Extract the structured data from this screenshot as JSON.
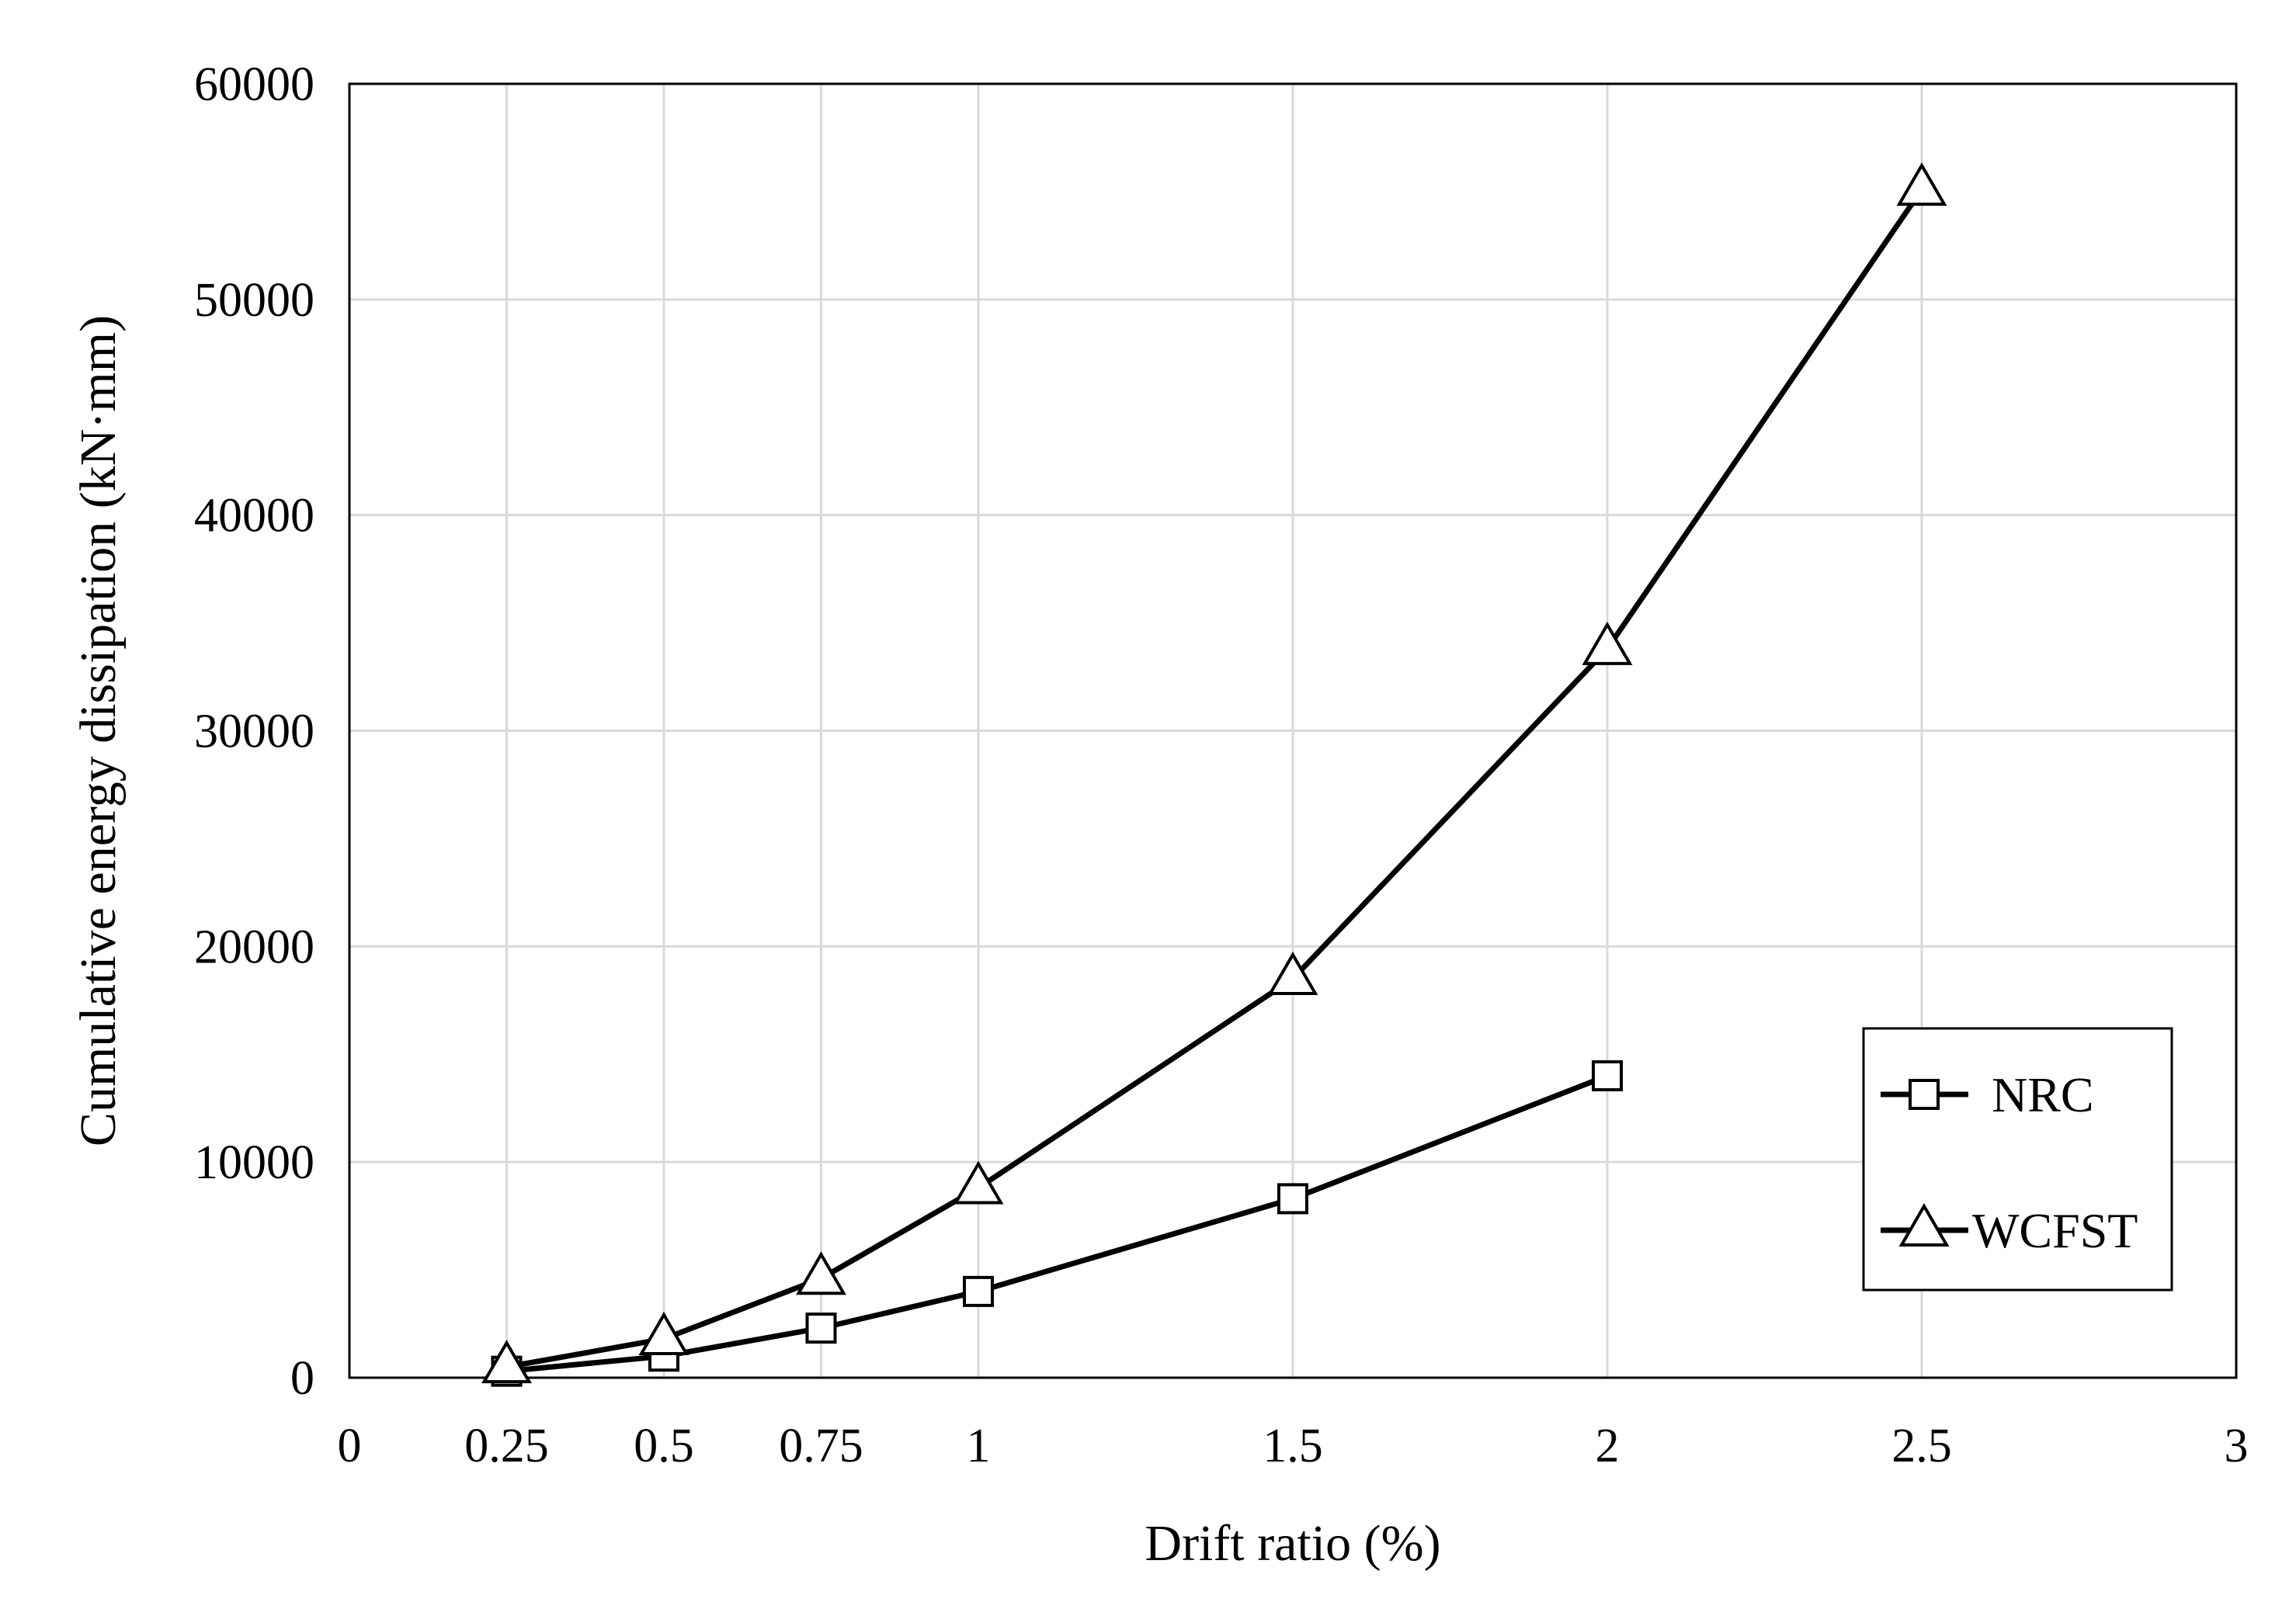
{
  "chart_data": {
    "type": "line",
    "title": "",
    "xlabel": "Drift ratio (%)",
    "ylabel": "Cumulative energy dissipation (kN·mm)",
    "xlim": [
      0,
      3
    ],
    "ylim": [
      0,
      60000
    ],
    "x_ticks": [
      {
        "value": 0,
        "label": "0"
      },
      {
        "value": 0.25,
        "label": "0.25"
      },
      {
        "value": 0.5,
        "label": "0.5"
      },
      {
        "value": 0.75,
        "label": "0.75"
      },
      {
        "value": 1,
        "label": "1"
      },
      {
        "value": 1.5,
        "label": "1.5"
      },
      {
        "value": 2,
        "label": "2"
      },
      {
        "value": 2.5,
        "label": "2.5"
      },
      {
        "value": 3,
        "label": "3"
      }
    ],
    "y_ticks": [
      {
        "value": 0,
        "label": "0"
      },
      {
        "value": 10000,
        "label": "10000"
      },
      {
        "value": 20000,
        "label": "20000"
      },
      {
        "value": 30000,
        "label": "30000"
      },
      {
        "value": 40000,
        "label": "40000"
      },
      {
        "value": 50000,
        "label": "50000"
      },
      {
        "value": 60000,
        "label": "60000"
      }
    ],
    "grid": true,
    "legend_position": "lower-right",
    "series": [
      {
        "name": "NRC",
        "marker": "square",
        "color": "#000000",
        "x": [
          0.25,
          0.5,
          0.75,
          1,
          1.5,
          2
        ],
        "y": [
          300,
          1000,
          2300,
          4000,
          8300,
          14000
        ]
      },
      {
        "name": "WCFST",
        "marker": "triangle",
        "color": "#000000",
        "x": [
          0.25,
          0.5,
          0.75,
          1,
          1.5,
          2,
          2.5
        ],
        "y": [
          500,
          1800,
          4600,
          8800,
          18500,
          33800,
          55100
        ]
      }
    ]
  }
}
